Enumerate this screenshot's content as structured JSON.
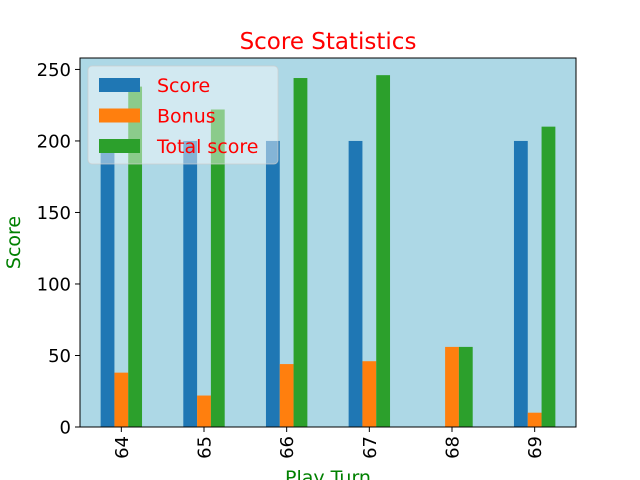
{
  "chart_data": {
    "type": "bar",
    "title": "Score Statistics",
    "xlabel": "Play Turn",
    "ylabel": "Score",
    "categories": [
      "64",
      "65",
      "66",
      "67",
      "68",
      "69"
    ],
    "series": [
      {
        "name": "Score",
        "color": "#1f77b4",
        "values": [
          200,
          200,
          200,
          200,
          0,
          200
        ]
      },
      {
        "name": "Bonus",
        "color": "#ff7f0e",
        "values": [
          38,
          22,
          44,
          46,
          56,
          10
        ]
      },
      {
        "name": "Total score",
        "color": "#2ca02c",
        "values": [
          238,
          222,
          244,
          246,
          56,
          210
        ]
      }
    ],
    "ylim": [
      0,
      258
    ],
    "yticks": [
      0,
      50,
      100,
      150,
      200,
      250
    ],
    "grid": false,
    "legend": "top-left",
    "colors": {
      "plot_background": "#add8e6",
      "title": "#ff0000",
      "axis_label": "#008000",
      "legend_text": "#ff0000"
    }
  }
}
